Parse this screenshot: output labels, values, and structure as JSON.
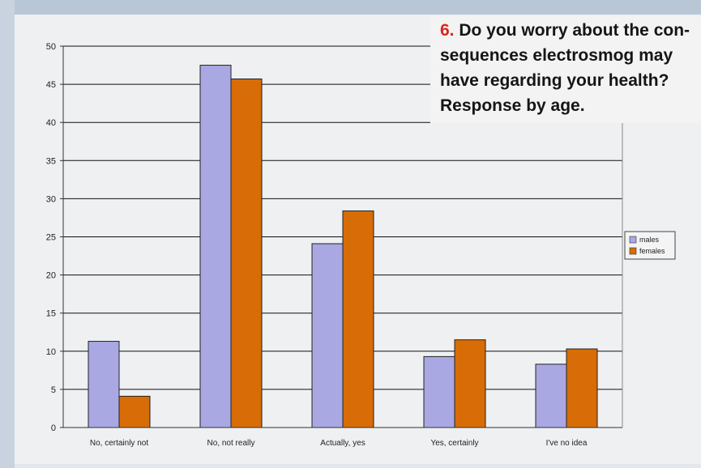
{
  "title": {
    "number": "6.",
    "text": "Do you worry about the con-sequences electrosmog may have regarding your health? Response by age."
  },
  "colors": {
    "males": "#a9a8e3",
    "females": "#d86c06"
  },
  "chart_data": {
    "type": "bar",
    "title": "6. Do you worry about the con-sequences electrosmog may have regarding your health? Response by age.",
    "categories": [
      "No, certainly not",
      "No, not really",
      "Actually, yes",
      "Yes, certainly",
      "I've no idea"
    ],
    "series": [
      {
        "name": "males",
        "values": [
          11.3,
          47.5,
          24.1,
          9.3,
          8.3
        ]
      },
      {
        "name": "females",
        "values": [
          4.1,
          45.7,
          28.4,
          11.5,
          10.3
        ]
      }
    ],
    "yticks": [
      0,
      5,
      10,
      15,
      20,
      25,
      30,
      35,
      40,
      45,
      50
    ],
    "ylim": [
      0,
      50
    ],
    "xlabel": "",
    "ylabel": "",
    "grid": true,
    "legend": "right"
  }
}
